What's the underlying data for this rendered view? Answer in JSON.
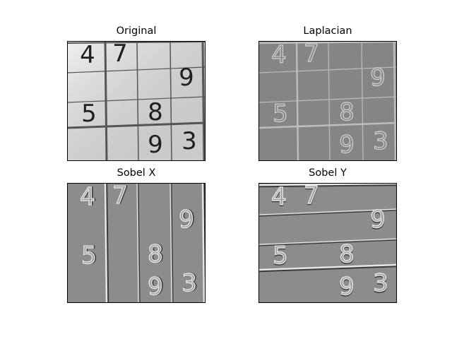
{
  "figure": {
    "panels": [
      {
        "title": "Original",
        "style": "original",
        "digits": [
          "4",
          "7",
          "9",
          "5",
          "8",
          "9",
          "3"
        ]
      },
      {
        "title": "Laplacian",
        "style": "laplacian",
        "digits": [
          "4",
          "7",
          "9",
          "5",
          "8",
          "9",
          "3"
        ]
      },
      {
        "title": "Sobel X",
        "style": "sobelx",
        "digits": [
          "4",
          "7",
          "9",
          "5",
          "8",
          "9",
          "3"
        ]
      },
      {
        "title": "Sobel Y",
        "style": "sobely",
        "digits": [
          "4",
          "7",
          "9",
          "5",
          "8",
          "9",
          "3"
        ]
      }
    ]
  },
  "colors": {
    "original_bg": "#e8e8e8",
    "original_ink": "#202020",
    "laplacian_bg": "#858585",
    "laplacian_ink": "#d4d4d4",
    "sobel_bg": "#8c8c8c",
    "sobel_light": "#e6e6e6",
    "sobel_dark": "#3a3a3a"
  }
}
